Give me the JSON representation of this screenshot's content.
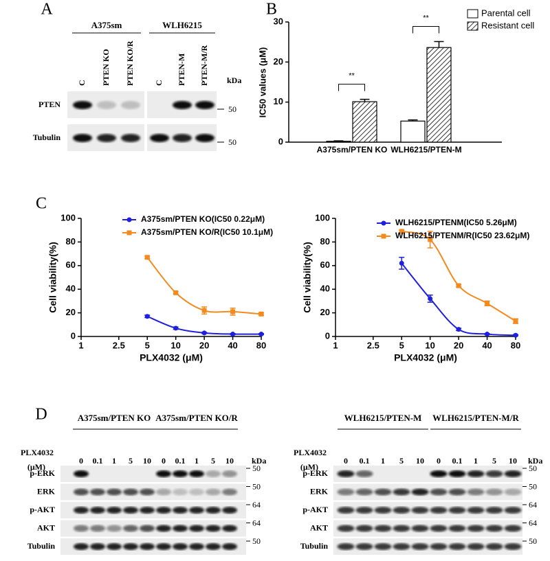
{
  "panel_labels": [
    "A",
    "B",
    "C",
    "D"
  ],
  "blot_a": {
    "groups": [
      "A375sm",
      "WLH6215"
    ],
    "lanes": [
      "C",
      "PTEN KO",
      "PTEN KO/R",
      "C",
      "PTEN-M",
      "PTEN-M/R"
    ],
    "rows": [
      "PTEN",
      "Tubulin"
    ],
    "kda": "kDa",
    "markers": [
      "50",
      "50"
    ]
  },
  "blot_d": [
    {
      "groups": [
        "A375sm/PTEN KO",
        "A375sm/PTEN KO/R"
      ],
      "dose_label": "PLX4032",
      "dose_unit": "(μM)",
      "doses": [
        "0",
        "0.1",
        "1",
        "5",
        "10",
        "0",
        "0.1",
        "1",
        "5",
        "10"
      ],
      "rows": [
        "p-ERK",
        "ERK",
        "p-AKT",
        "AKT",
        "Tubulin"
      ],
      "kda": "kDa",
      "markers": [
        "50",
        "50",
        "64",
        "64",
        "50"
      ]
    },
    {
      "groups": [
        "WLH6215/PTEN-M",
        "WLH6215/PTEN-M/R"
      ],
      "dose_label": "PLX4032",
      "dose_unit": "(μM)",
      "doses": [
        "0",
        "0.1",
        "1",
        "5",
        "10",
        "0",
        "0.1",
        "1",
        "5",
        "10"
      ],
      "rows": [
        "p-ERK",
        "ERK",
        "p-AKT",
        "AKT",
        "Tubulin"
      ],
      "kda": "kDa",
      "markers": [
        "50",
        "50",
        "64",
        "64",
        "50"
      ]
    }
  ],
  "chart_data": [
    {
      "type": "bar",
      "ylabel": "IC50 values (μM)",
      "categories": [
        "A375sm/PTEN KO",
        "WLH6215/PTEN-M"
      ],
      "series": [
        {
          "name": "Parental cell",
          "color": "#ffffff",
          "values": [
            0.22,
            5.26
          ],
          "errors": [
            0.1,
            0.3
          ]
        },
        {
          "name": "Resistant cell",
          "color": "#ffffff",
          "hatch": true,
          "values": [
            10.1,
            23.62
          ],
          "errors": [
            0.6,
            1.5
          ]
        }
      ],
      "ylim": [
        0,
        30
      ],
      "yticks": [
        0,
        10,
        20,
        30
      ],
      "annotations": [
        "**",
        "**"
      ],
      "legend": "upper right"
    },
    {
      "type": "line",
      "xlabel": "PLX4032 (μM)",
      "ylabel": "Cell viability(%)",
      "x": [
        5,
        10,
        20,
        40,
        80
      ],
      "xlog": true,
      "xlim": [
        1,
        80
      ],
      "xticks": [
        1,
        2.5,
        5,
        10,
        20,
        40,
        80
      ],
      "ylim": [
        0,
        100
      ],
      "yticks": [
        0,
        20,
        40,
        60,
        80,
        100
      ],
      "legend": "upper right",
      "series": [
        {
          "name": "A375sm/PTEN KO(IC50 0.22μM)",
          "color": "#1f1fdf",
          "marker": "circle",
          "values": [
            17,
            7,
            3,
            2,
            2
          ],
          "errors": [
            1,
            1,
            0.5,
            0.5,
            0.5
          ]
        },
        {
          "name": "A375sm/PTEN KO/R(IC50 10.1μM)",
          "color": "#f28a1e",
          "marker": "square",
          "values": [
            67,
            37,
            22,
            21,
            19
          ],
          "errors": [
            1,
            1,
            3,
            3,
            1
          ]
        }
      ]
    },
    {
      "type": "line",
      "xlabel": "PLX4032 (μM)",
      "ylabel": "Cell viability(%)",
      "x": [
        5,
        10,
        20,
        40,
        80
      ],
      "xlog": true,
      "xlim": [
        1,
        80
      ],
      "xticks": [
        1,
        2.5,
        5,
        10,
        20,
        40,
        80
      ],
      "ylim": [
        0,
        100
      ],
      "yticks": [
        0,
        20,
        40,
        60,
        80,
        100
      ],
      "legend": "upper right",
      "series": [
        {
          "name": "WLH6215/PTENM(IC50 5.26μM)",
          "color": "#1f1fdf",
          "marker": "circle",
          "values": [
            62,
            32,
            6,
            2,
            1
          ],
          "errors": [
            5,
            3,
            1,
            0.5,
            0.5
          ]
        },
        {
          "name": "WLH6215/PTENM/R(IC50 23.62μM)",
          "color": "#f28a1e",
          "marker": "square",
          "values": [
            89,
            82,
            43,
            28,
            13
          ],
          "errors": [
            1,
            7,
            1,
            2,
            2
          ]
        }
      ]
    }
  ]
}
